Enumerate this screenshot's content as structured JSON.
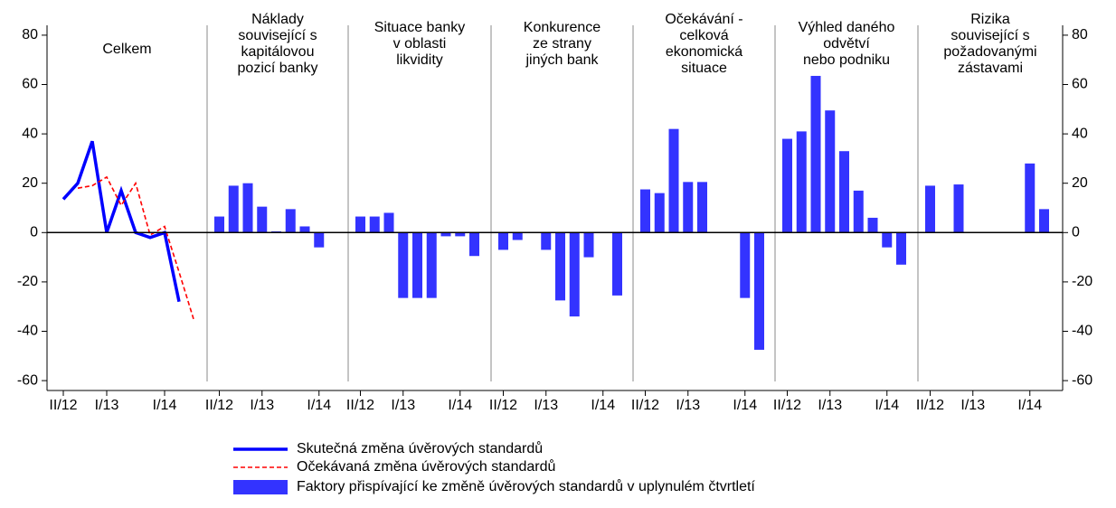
{
  "chart_data": [
    {
      "type": "line",
      "title": [
        "Celkem"
      ],
      "ylim": [
        -64,
        84
      ],
      "yticks": [
        -60,
        -40,
        -20,
        0,
        20,
        40,
        60,
        80
      ],
      "categories": [
        "II/12",
        null,
        null,
        "I/13",
        null,
        null,
        null,
        "I/14",
        null,
        null
      ],
      "series": [
        {
          "name": "Skutečná změna úvěrových standardů",
          "color": "#0000ff",
          "dash": false,
          "values": [
            13.5,
            20,
            37,
            0,
            17,
            0,
            -2,
            0,
            -28,
            null
          ]
        },
        {
          "name": "Očekávaná změna úvěrových standardů",
          "color": "#ff0000",
          "dash": true,
          "values": [
            null,
            18,
            19,
            22.5,
            11,
            20,
            -1,
            2.5,
            -16,
            -35
          ]
        }
      ]
    },
    {
      "type": "bar",
      "title": [
        "Náklady",
        "související s",
        "kapitálovou",
        "pozicí banky"
      ],
      "color": "#3333ff",
      "categories": [
        "II/12",
        null,
        null,
        "I/13",
        null,
        null,
        null,
        "I/14",
        null
      ],
      "values": [
        6.5,
        19,
        20,
        10.5,
        0.5,
        9.5,
        2.5,
        -6,
        null
      ]
    },
    {
      "type": "bar",
      "title": [
        "Situace banky",
        "v oblasti",
        "likvidity"
      ],
      "color": "#3333ff",
      "categories": [
        "II/12",
        null,
        null,
        "I/13",
        null,
        null,
        null,
        "I/14",
        null
      ],
      "values": [
        6.5,
        6.5,
        8,
        -26.5,
        -26.5,
        -26.5,
        -1.5,
        -1.5,
        -9.5
      ]
    },
    {
      "type": "bar",
      "title": [
        "Konkurence",
        "ze strany",
        "jiných bank"
      ],
      "color": "#3333ff",
      "categories": [
        "II/12",
        null,
        null,
        "I/13",
        null,
        null,
        null,
        "I/14",
        null
      ],
      "values": [
        -7,
        -3,
        0,
        -7,
        -27.5,
        -34,
        -10,
        0,
        -25.5
      ]
    },
    {
      "type": "bar",
      "title": [
        "Očekávání -",
        "celková",
        "ekonomická",
        "situace"
      ],
      "color": "#3333ff",
      "categories": [
        "II/12",
        null,
        null,
        "I/13",
        null,
        null,
        null,
        "I/14",
        null
      ],
      "values": [
        17.5,
        16,
        42,
        20.5,
        20.5,
        0,
        0,
        -26.5,
        -47.5
      ]
    },
    {
      "type": "bar",
      "title": [
        "Výhled daného",
        "odvětví",
        "nebo podniku"
      ],
      "color": "#3333ff",
      "categories": [
        "II/12",
        null,
        null,
        "I/13",
        null,
        null,
        null,
        "I/14",
        null
      ],
      "values": [
        38,
        41,
        63.5,
        49.5,
        33,
        17,
        6,
        -6,
        -13
      ]
    },
    {
      "type": "bar",
      "title": [
        "Rizika",
        "související s",
        "požadovanými",
        "zástavami"
      ],
      "color": "#3333ff",
      "categories": [
        "II/12",
        null,
        null,
        "I/13",
        null,
        null,
        null,
        "I/14",
        null
      ],
      "values": [
        19,
        0,
        19.5,
        0,
        0,
        0,
        0,
        28,
        9.5
      ]
    }
  ],
  "legend": {
    "bars": "Faktory přispívající ke změně úvěrových standardů v uplynulém čtvrtletí"
  }
}
